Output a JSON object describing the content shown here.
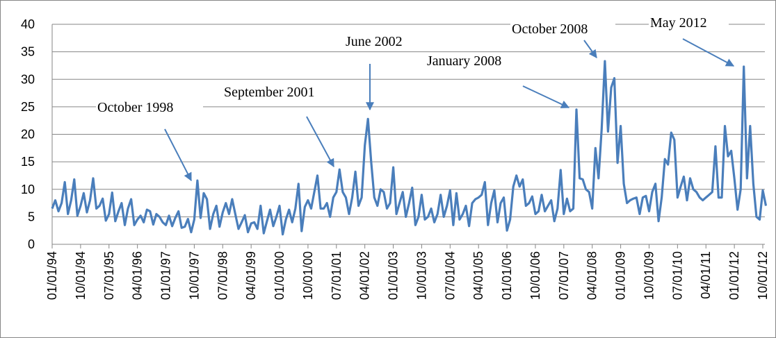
{
  "chart_data": {
    "type": "line",
    "categories": [
      "01/01/94",
      null,
      null,
      null,
      null,
      null,
      null,
      null,
      null,
      "10/01/94",
      null,
      null,
      null,
      null,
      null,
      null,
      null,
      null,
      "07/01/95",
      null,
      null,
      null,
      null,
      null,
      null,
      null,
      null,
      "04/01/96",
      null,
      null,
      null,
      null,
      null,
      null,
      null,
      null,
      "01/01/97",
      null,
      null,
      null,
      null,
      null,
      null,
      null,
      null,
      "10/01/97",
      null,
      null,
      null,
      null,
      null,
      null,
      null,
      null,
      "07/01/98",
      null,
      null,
      null,
      null,
      null,
      null,
      null,
      null,
      "04/01/99",
      null,
      null,
      null,
      null,
      null,
      null,
      null,
      null,
      "01/01/00",
      null,
      null,
      null,
      null,
      null,
      null,
      null,
      null,
      "10/01/00",
      null,
      null,
      null,
      null,
      null,
      null,
      null,
      null,
      "07/01/01",
      null,
      null,
      null,
      null,
      null,
      null,
      null,
      null,
      "04/01/02",
      null,
      null,
      null,
      null,
      null,
      null,
      null,
      null,
      "01/01/03",
      null,
      null,
      null,
      null,
      null,
      null,
      null,
      null,
      "10/01/03",
      null,
      null,
      null,
      null,
      null,
      null,
      null,
      null,
      "07/01/04",
      null,
      null,
      null,
      null,
      null,
      null,
      null,
      null,
      "04/01/05",
      null,
      null,
      null,
      null,
      null,
      null,
      null,
      null,
      "01/01/06",
      null,
      null,
      null,
      null,
      null,
      null,
      null,
      null,
      "10/01/06",
      null,
      null,
      null,
      null,
      null,
      null,
      null,
      null,
      "07/01/07",
      null,
      null,
      null,
      null,
      null,
      null,
      null,
      null,
      "04/01/08",
      null,
      null,
      null,
      null,
      null,
      null,
      null,
      null,
      "01/01/09",
      null,
      null,
      null,
      null,
      null,
      null,
      null,
      null,
      "10/01/09",
      null,
      null,
      null,
      null,
      null,
      null,
      null,
      null,
      "07/01/10",
      null,
      null,
      null,
      null,
      null,
      null,
      null,
      null,
      "04/01/11",
      null,
      null,
      null,
      null,
      null,
      null,
      null,
      null,
      "01/01/12",
      null,
      null,
      null,
      null,
      null,
      null,
      null,
      null,
      "10/01/12",
      null
    ],
    "values": [
      6.5,
      8,
      6,
      7.5,
      11.3,
      5.5,
      8,
      11.8,
      5.2,
      7,
      9.3,
      5.8,
      8,
      12,
      6.5,
      7,
      8.3,
      4.3,
      5.5,
      9.4,
      4.2,
      6,
      7.5,
      3.5,
      6.5,
      8.2,
      3.5,
      4.5,
      5.2,
      4,
      6.3,
      6,
      3.6,
      5.5,
      5,
      4,
      3.5,
      5.2,
      3.3,
      4.8,
      6,
      3,
      3.2,
      4.6,
      2.2,
      4.5,
      11.6,
      4.8,
      9.3,
      8.2,
      2.8,
      5.5,
      7,
      3.2,
      5.8,
      7.5,
      5.5,
      8.2,
      5.5,
      2.8,
      4,
      5.3,
      2.2,
      3.8,
      4,
      2.8,
      7,
      2,
      4.2,
      6.3,
      3.3,
      5,
      7,
      1.8,
      4.5,
      6.3,
      4,
      6.5,
      11,
      2.4,
      6.8,
      8,
      6.5,
      9.5,
      12.5,
      6.5,
      6.5,
      7.5,
      5,
      8.5,
      9.5,
      13.6,
      9.5,
      8.5,
      5.5,
      8.5,
      13.2,
      7,
      8.5,
      18,
      22.8,
      15,
      8.5,
      7,
      10,
      9.5,
      6.5,
      7.5,
      14,
      5.5,
      7.5,
      9.5,
      5,
      7.5,
      10.3,
      3.5,
      5,
      9,
      4.5,
      5,
      6.5,
      4,
      5.5,
      9,
      5,
      7,
      9.8,
      3.5,
      9.3,
      4.5,
      5.5,
      7,
      3.3,
      7.5,
      8.2,
      8.5,
      9,
      11.3,
      3.5,
      7.5,
      9.8,
      4,
      7.5,
      8.5,
      2.5,
      4.5,
      10.5,
      12.5,
      10.5,
      11.8,
      7,
      7.5,
      8.7,
      5.5,
      6,
      9,
      6,
      7,
      8,
      4.2,
      6.5,
      13.5,
      5.5,
      8.3,
      6,
      6.5,
      24.5,
      12,
      11.8,
      10,
      9.5,
      6.5,
      17.5,
      12,
      21,
      33.3,
      20.5,
      28.5,
      30.2,
      14.8,
      21.5,
      11,
      7.5,
      8,
      8.3,
      8.5,
      5.5,
      8.5,
      8.8,
      6,
      9.5,
      11,
      4.2,
      8.5,
      15.5,
      14.5,
      20.3,
      19,
      8.5,
      10.5,
      12.3,
      8,
      12,
      10,
      9.5,
      8.5,
      8,
      8.5,
      9,
      9.5,
      17.8,
      8.5,
      8.5,
      21.5,
      16,
      17,
      12,
      6.3,
      10,
      32.3,
      12,
      21.5,
      11,
      5,
      4.5,
      9.8,
      7
    ],
    "color": "#4a7ebb",
    "ylim": [
      0,
      40
    ],
    "yticks": [
      0,
      5,
      10,
      15,
      20,
      25,
      30,
      35,
      40
    ],
    "grid": true,
    "annotations": [
      "October 1998",
      "September 2001",
      "June 2002",
      "January 2008",
      "October 2008",
      "May 2012"
    ]
  }
}
